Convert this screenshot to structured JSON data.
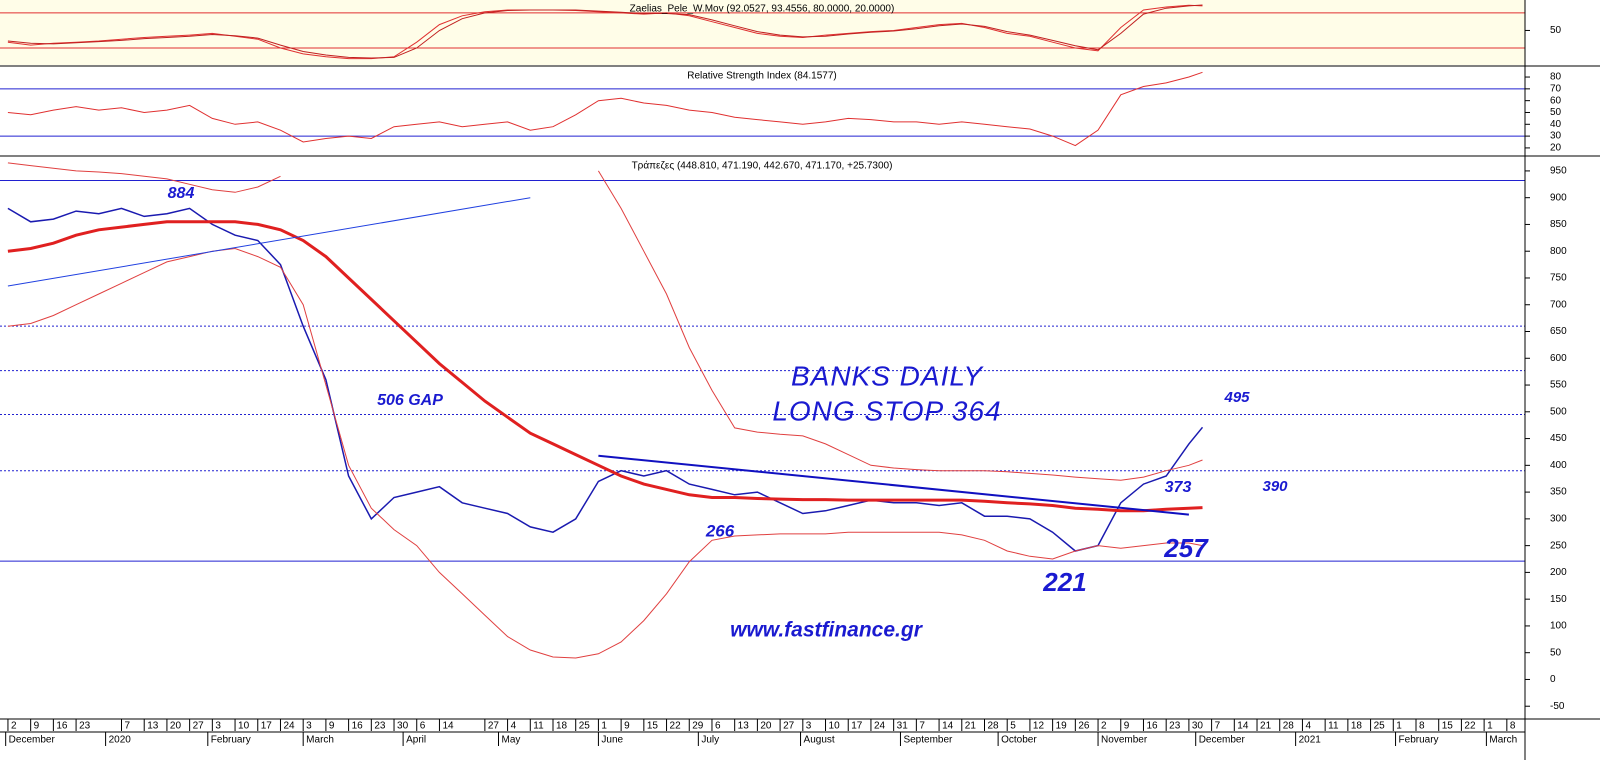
{
  "chart_data": [
    {
      "type": "line",
      "title": "Zaelias_Pele_W.Mov (92.0527, 93.4556, 80.0000, 20.0000)",
      "ylim": [
        -9,
        102
      ],
      "yticks": [
        50
      ],
      "levels": [
        80,
        20
      ],
      "level_color": "#e03030",
      "background": "#fffde8",
      "x": [
        0,
        1,
        2,
        3,
        4,
        5,
        6,
        7,
        8,
        9,
        10,
        11,
        12,
        13,
        14,
        15,
        16,
        17,
        18,
        19,
        20,
        21,
        22,
        23,
        24,
        25,
        26,
        27,
        28,
        29,
        30,
        31,
        32,
        33,
        34,
        35,
        36,
        37,
        38,
        39,
        40,
        41,
        42,
        43,
        44,
        45,
        46,
        47,
        48,
        49,
        50,
        51,
        52,
        52.6
      ],
      "series": [
        {
          "color": "#e03030",
          "width": 1,
          "values": [
            30,
            25,
            28,
            30,
            32,
            35,
            38,
            40,
            42,
            45,
            40,
            35,
            20,
            10,
            5,
            2,
            2,
            5,
            30,
            60,
            75,
            82,
            85,
            85,
            85,
            84,
            82,
            80,
            78,
            80,
            75,
            65,
            55,
            45,
            40,
            38,
            42,
            45,
            48,
            50,
            55,
            60,
            62,
            55,
            45,
            40,
            30,
            20,
            15,
            55,
            85,
            90,
            93,
            92
          ]
        },
        {
          "color": "#c02020",
          "width": 1,
          "values": [
            32,
            28,
            27,
            29,
            31,
            33,
            36,
            38,
            40,
            43,
            41,
            37,
            25,
            14,
            8,
            4,
            3,
            4,
            20,
            50,
            70,
            80,
            84,
            85,
            85,
            85,
            83,
            81,
            79,
            79,
            77,
            68,
            58,
            48,
            42,
            39,
            40,
            44,
            47,
            49,
            53,
            58,
            61,
            57,
            48,
            42,
            33,
            24,
            17,
            45,
            78,
            88,
            92,
            93.5
          ]
        }
      ]
    },
    {
      "type": "line",
      "title": "Relative Strength Index (84.1577)",
      "ylim": [
        14,
        88.5
      ],
      "yticks": [
        80,
        70,
        60,
        50,
        40,
        30,
        20
      ],
      "levels": [
        70,
        30
      ],
      "level_color": "#2020d0",
      "background": "#ffffff",
      "x": [
        0,
        1,
        2,
        3,
        4,
        5,
        6,
        7,
        8,
        9,
        10,
        11,
        12,
        13,
        14,
        15,
        16,
        17,
        18,
        19,
        20,
        21,
        22,
        23,
        24,
        25,
        26,
        27,
        28,
        29,
        30,
        31,
        32,
        33,
        34,
        35,
        36,
        37,
        38,
        39,
        40,
        41,
        42,
        43,
        44,
        45,
        46,
        47,
        48,
        49,
        50,
        51,
        52,
        52.6
      ],
      "series": [
        {
          "color": "#e03030",
          "width": 1,
          "values": [
            50,
            48,
            52,
            55,
            52,
            54,
            50,
            52,
            56,
            45,
            40,
            42,
            35,
            25,
            28,
            30,
            28,
            38,
            40,
            42,
            38,
            40,
            42,
            35,
            38,
            48,
            60,
            62,
            58,
            56,
            52,
            50,
            46,
            44,
            42,
            40,
            42,
            45,
            44,
            42,
            42,
            40,
            42,
            40,
            38,
            36,
            30,
            22,
            35,
            65,
            72,
            75,
            80,
            84
          ]
        }
      ]
    },
    {
      "type": "line",
      "title": "Τράπεζες (448.810, 471.190, 442.670, 471.170, +25.7300)",
      "ylim": [
        -72,
        976
      ],
      "yticks": [
        950,
        900,
        850,
        800,
        750,
        700,
        650,
        600,
        550,
        500,
        450,
        400,
        350,
        300,
        250,
        200,
        150,
        100,
        50,
        0,
        -50
      ],
      "background": "#ffffff",
      "xlim": [
        -0.35,
        66.8
      ],
      "xticks": [
        {
          "value": 0,
          "label": "2"
        },
        {
          "value": 1,
          "label": "9"
        },
        {
          "value": 2,
          "label": "16"
        },
        {
          "value": 3,
          "label": "23"
        },
        {
          "value": 5,
          "label": "7"
        },
        {
          "value": 6,
          "label": "13"
        },
        {
          "value": 7,
          "label": "20"
        },
        {
          "value": 8,
          "label": "27"
        },
        {
          "value": 9,
          "label": "3"
        },
        {
          "value": 10,
          "label": "10"
        },
        {
          "value": 11,
          "label": "17"
        },
        {
          "value": 12,
          "label": "24"
        },
        {
          "value": 13,
          "label": "3"
        },
        {
          "value": 14,
          "label": "9"
        },
        {
          "value": 15,
          "label": "16"
        },
        {
          "value": 16,
          "label": "23"
        },
        {
          "value": 17,
          "label": "30"
        },
        {
          "value": 18,
          "label": "6"
        },
        {
          "value": 19,
          "label": "14"
        },
        {
          "value": 21,
          "label": "27"
        },
        {
          "value": 22,
          "label": "4"
        },
        {
          "value": 23,
          "label": "11"
        },
        {
          "value": 24,
          "label": "18"
        },
        {
          "value": 25,
          "label": "25"
        },
        {
          "value": 26,
          "label": "1"
        },
        {
          "value": 27,
          "label": "9"
        },
        {
          "value": 28,
          "label": "15"
        },
        {
          "value": 29,
          "label": "22"
        },
        {
          "value": 30,
          "label": "29"
        },
        {
          "value": 31,
          "label": "6"
        },
        {
          "value": 32,
          "label": "13"
        },
        {
          "value": 33,
          "label": "20"
        },
        {
          "value": 34,
          "label": "27"
        },
        {
          "value": 35,
          "label": "3"
        },
        {
          "value": 36,
          "label": "10"
        },
        {
          "value": 37,
          "label": "17"
        },
        {
          "value": 38,
          "label": "24"
        },
        {
          "value": 39,
          "label": "31"
        },
        {
          "value": 40,
          "label": "7"
        },
        {
          "value": 41,
          "label": "14"
        },
        {
          "value": 42,
          "label": "21"
        },
        {
          "value": 43,
          "label": "28"
        },
        {
          "value": 44,
          "label": "5"
        },
        {
          "value": 45,
          "label": "12"
        },
        {
          "value": 46,
          "label": "19"
        },
        {
          "value": 47,
          "label": "26"
        },
        {
          "value": 48,
          "label": "2"
        },
        {
          "value": 49,
          "label": "9"
        },
        {
          "value": 50,
          "label": "16"
        },
        {
          "value": 51,
          "label": "23"
        },
        {
          "value": 52,
          "label": "30"
        },
        {
          "value": 53,
          "label": "7"
        },
        {
          "value": 54,
          "label": "14"
        },
        {
          "value": 55,
          "label": "21"
        },
        {
          "value": 56,
          "label": "28"
        },
        {
          "value": 57,
          "label": "4"
        },
        {
          "value": 58,
          "label": "11"
        },
        {
          "value": 59,
          "label": "18"
        },
        {
          "value": 60,
          "label": "25"
        },
        {
          "value": 61,
          "label": "1"
        },
        {
          "value": 62,
          "label": "8"
        },
        {
          "value": 63,
          "label": "15"
        },
        {
          "value": 64,
          "label": "22"
        },
        {
          "value": 65,
          "label": "1"
        },
        {
          "value": 66,
          "label": "8"
        }
      ],
      "month_ticks": [
        {
          "value": -0.1,
          "label": "December"
        },
        {
          "value": 4.3,
          "label": "2020"
        },
        {
          "value": 8.8,
          "label": "February"
        },
        {
          "value": 13,
          "label": "March"
        },
        {
          "value": 17.4,
          "label": "April"
        },
        {
          "value": 21.6,
          "label": "May"
        },
        {
          "value": 26,
          "label": "June"
        },
        {
          "value": 30.4,
          "label": "July"
        },
        {
          "value": 34.9,
          "label": "August"
        },
        {
          "value": 39.3,
          "label": "September"
        },
        {
          "value": 43.6,
          "label": "October"
        },
        {
          "value": 48,
          "label": "November"
        },
        {
          "value": 52.3,
          "label": "December"
        },
        {
          "value": 56.7,
          "label": "2021"
        },
        {
          "value": 61.1,
          "label": "February"
        },
        {
          "value": 65.1,
          "label": "March"
        }
      ],
      "hlines": [
        {
          "value": 932,
          "style": "solid"
        },
        {
          "value": 660,
          "style": "dotted"
        },
        {
          "value": 577,
          "style": "dotted"
        },
        {
          "value": 495,
          "style": "dotted"
        },
        {
          "value": 390,
          "style": "dotted"
        },
        {
          "value": 221,
          "style": "solid"
        }
      ],
      "hline_color": "#2020d0",
      "trendlines": [
        {
          "x": [
            0,
            23
          ],
          "values": [
            735,
            900
          ],
          "color": "#2040e0"
        },
        {
          "x": [
            26,
            52
          ],
          "values": [
            418,
            308
          ],
          "color": "#1010c0"
        }
      ],
      "x": [
        0,
        1,
        2,
        3,
        4,
        5,
        6,
        7,
        8,
        9,
        10,
        11,
        12,
        13,
        14,
        15,
        16,
        17,
        18,
        19,
        20,
        21,
        22,
        23,
        24,
        25,
        26,
        27,
        28,
        29,
        30,
        31,
        32,
        33,
        34,
        35,
        36,
        37,
        38,
        39,
        40,
        41,
        42,
        43,
        44,
        45,
        46,
        47,
        48,
        49,
        50,
        51,
        52,
        52.6
      ],
      "series": [
        {
          "color": "#1a1ab0",
          "width": 1.5,
          "values": [
            880,
            855,
            860,
            875,
            870,
            880,
            865,
            870,
            880,
            850,
            830,
            820,
            775,
            660,
            560,
            380,
            300,
            340,
            350,
            360,
            330,
            320,
            310,
            285,
            275,
            300,
            370,
            390,
            380,
            390,
            365,
            355,
            345,
            350,
            330,
            310,
            315,
            325,
            335,
            330,
            330,
            325,
            330,
            305,
            305,
            300,
            275,
            240,
            250,
            330,
            365,
            380,
            440,
            471
          ]
        },
        {
          "color": "#e02020",
          "width": 3,
          "values": [
            800,
            805,
            815,
            830,
            840,
            845,
            850,
            855,
            855,
            855,
            855,
            850,
            840,
            820,
            790,
            750,
            710,
            670,
            630,
            590,
            555,
            520,
            490,
            460,
            440,
            420,
            400,
            380,
            365,
            355,
            345,
            340,
            340,
            338,
            337,
            336,
            336,
            335,
            335,
            335,
            335,
            335,
            335,
            333,
            330,
            328,
            325,
            320,
            318,
            315,
            315,
            318,
            320,
            321
          ]
        },
        {
          "color": "#e04040",
          "width": 1,
          "values": [
            965,
            960,
            955,
            950,
            948,
            945,
            940,
            935,
            925,
            915,
            910,
            920,
            940,
            null,
            null,
            null,
            null,
            null,
            null,
            null,
            null,
            null,
            null,
            null,
            null,
            null,
            950,
            880,
            800,
            720,
            620,
            540,
            470,
            462,
            458,
            455,
            440,
            420,
            400,
            395,
            392,
            390,
            390,
            390,
            388,
            385,
            382,
            378,
            375,
            372,
            378,
            390,
            400,
            410
          ]
        },
        {
          "color": "#e04040",
          "width": 1,
          "values": [
            660,
            665,
            680,
            700,
            720,
            740,
            760,
            780,
            790,
            800,
            805,
            790,
            770,
            700,
            550,
            400,
            320,
            280,
            250,
            200,
            160,
            120,
            80,
            55,
            42,
            40,
            48,
            70,
            110,
            160,
            220,
            260,
            268,
            270,
            272,
            272,
            272,
            275,
            275,
            275,
            275,
            275,
            270,
            260,
            240,
            230,
            225,
            240,
            250,
            245,
            250,
            255,
            255,
            250
          ]
        }
      ],
      "annotations": [
        "884",
        "506 GAP",
        "BANKS DAILY",
        "LONG STOP 364",
        "495",
        "266",
        "373",
        "390",
        "257",
        "221",
        "www.fastfinance.gr"
      ]
    }
  ]
}
